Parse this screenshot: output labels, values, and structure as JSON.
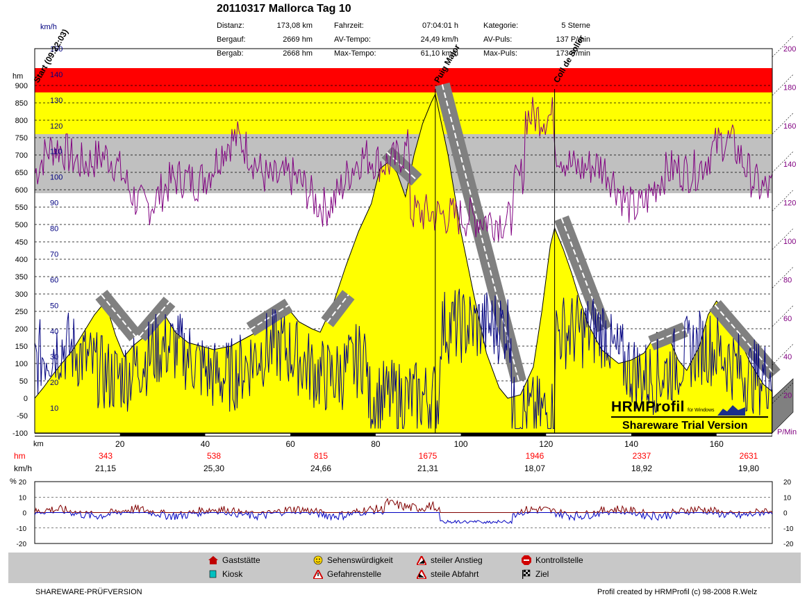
{
  "header": {
    "title": "20110317 Mallorca Tag 10",
    "stats": [
      {
        "label": "Distanz:",
        "value": "173,08 km"
      },
      {
        "label": "Bergauf:",
        "value": "2669 hm"
      },
      {
        "label": "Bergab:",
        "value": "2668 hm"
      },
      {
        "label": "Fahrzeit:",
        "value": "07:04:01 h"
      },
      {
        "label": "AV-Tempo:",
        "value": "24,49 km/h"
      },
      {
        "label": "Max-Tempo:",
        "value": "61,10 km/h"
      },
      {
        "label": "Kategorie:",
        "value": "5 Sterne"
      },
      {
        "label": "AV-Puls:",
        "value": "137 P/min"
      },
      {
        "label": "Max-Puls:",
        "value": "173 P/min"
      }
    ]
  },
  "chart_data": [
    {
      "type": "area",
      "units": {
        "speed": "km/h",
        "altitude": "hm",
        "pulse": "P/Min",
        "distance": "km"
      },
      "altitude_axis": {
        "label": "hm",
        "ticks": [
          900,
          850,
          800,
          750,
          700,
          650,
          600,
          550,
          500,
          450,
          400,
          350,
          300,
          250,
          200,
          150,
          100,
          50,
          0,
          -50,
          -100
        ],
        "range": [
          -100,
          950
        ]
      },
      "speed_axis": {
        "label": "km/h",
        "ticks": [
          150,
          140,
          130,
          120,
          110,
          100,
          90,
          80,
          70,
          60,
          50,
          40,
          30,
          20,
          10
        ],
        "range": [
          0,
          150
        ]
      },
      "pulse_axis": {
        "label": "P/Min",
        "ticks": [
          200,
          180,
          160,
          140,
          120,
          100,
          80,
          60,
          40,
          20
        ],
        "range": [
          0,
          200
        ]
      },
      "distance_axis": {
        "label": "km",
        "ticks": [
          20,
          40,
          60,
          80,
          100,
          120,
          140,
          160
        ],
        "range": [
          0,
          173.08
        ]
      },
      "zones": [
        {
          "name": "red",
          "from": 880,
          "to": 950,
          "color": "#ff0000"
        },
        {
          "name": "yellow-upper",
          "from": 760,
          "to": 880,
          "color": "#ffff00"
        },
        {
          "name": "gray",
          "from": 590,
          "to": 760,
          "color": "#c0c0c0"
        }
      ],
      "altitude_profile": {
        "x": [
          0,
          2,
          5,
          9,
          12,
          14,
          16,
          17,
          19,
          21,
          23,
          26,
          28,
          30,
          33,
          36,
          39,
          42,
          46,
          49,
          52,
          55,
          58,
          60,
          62,
          65,
          67,
          70,
          73,
          76,
          79,
          81,
          83,
          85,
          87,
          89,
          91,
          93,
          94,
          97,
          100,
          103,
          106,
          109,
          111,
          114,
          117,
          119,
          121,
          122,
          124,
          126,
          128,
          130,
          133,
          137,
          140,
          143,
          146,
          149,
          151,
          153,
          156,
          158,
          160,
          162,
          165,
          168,
          171,
          173
        ],
        "y": [
          0,
          30,
          80,
          140,
          200,
          240,
          270,
          260,
          180,
          120,
          150,
          180,
          210,
          250,
          190,
          160,
          150,
          140,
          150,
          170,
          190,
          210,
          240,
          250,
          220,
          200,
          190,
          270,
          380,
          480,
          560,
          660,
          680,
          650,
          580,
          700,
          790,
          850,
          875,
          700,
          480,
          300,
          130,
          30,
          0,
          10,
          90,
          250,
          440,
          490,
          430,
          360,
          280,
          210,
          140,
          100,
          110,
          130,
          190,
          170,
          110,
          80,
          150,
          240,
          280,
          250,
          180,
          100,
          40,
          20
        ]
      },
      "annotations": [
        {
          "text": "Start (09:22:03)",
          "km": 0
        },
        {
          "text": "Puig Major",
          "km": 94
        },
        {
          "text": "Coll de Soller",
          "km": 122
        }
      ],
      "split_rows": [
        {
          "label": "hm",
          "values": [
            "343",
            "538",
            "815",
            "1675",
            "1946",
            "2337",
            "2631"
          ]
        },
        {
          "label": "km/h",
          "values": [
            "21,15",
            "25,30",
            "24,66",
            "21,31",
            "18,07",
            "18,92",
            "19,80"
          ]
        }
      ],
      "colors": {
        "altitude_fill": "#ffff00",
        "speed_line": "#000080",
        "pulse_line": "#800080",
        "red_labels": "#ff0000"
      }
    },
    {
      "type": "line",
      "y_axis": {
        "label": "%",
        "ticks": [
          20,
          10,
          0,
          -10,
          -20
        ],
        "range": [
          -20,
          20
        ]
      },
      "series": [],
      "colors": {
        "uphill": "#800000",
        "downhill": "#0000c0"
      }
    }
  ],
  "watermark": {
    "brand": "HRMProfil",
    "subtitle": "für Windows",
    "trial": "Shareware Trial  Version"
  },
  "legend": [
    {
      "icon": "house-icon",
      "label": "Gaststätte"
    },
    {
      "icon": "cup-icon",
      "label": "Kiosk"
    },
    {
      "icon": "smiley-icon",
      "label": "Sehenswürdigkeit"
    },
    {
      "icon": "warning-icon",
      "label": "Gefahrenstelle"
    },
    {
      "icon": "climb-icon",
      "label": "steiler Anstieg"
    },
    {
      "icon": "descent-icon",
      "label": "steile Abfahrt"
    },
    {
      "icon": "stop-icon",
      "label": "Kontrollstelle"
    },
    {
      "icon": "finish-flag-icon",
      "label": "Ziel"
    }
  ],
  "footer": {
    "left": "SHAREWARE-PRÜFVERSION",
    "right": "Profil created by HRMProfil (c) 98-2008 R.Welz"
  }
}
